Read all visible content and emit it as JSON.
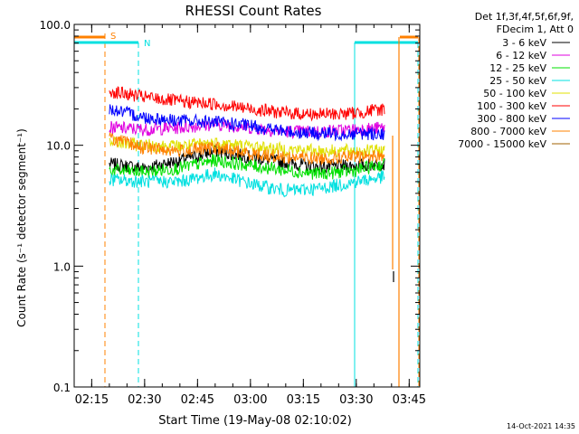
{
  "chart_data": {
    "type": "line",
    "title": "RHESSI Count Rates",
    "xlabel": "Start Time (19-May-08 02:10:02)",
    "ylabel": "Count Rate (s⁻¹ detector segment⁻¹)",
    "y_scale": "log",
    "ylim": [
      0.1,
      100.0
    ],
    "xlim": [
      "02:10:02",
      "03:48:00"
    ],
    "y_tick_labels": [
      "0.1",
      "1.0",
      "10.0",
      "100.0"
    ],
    "x_tick_labels": [
      "02:15",
      "02:30",
      "02:45",
      "03:00",
      "03:15",
      "03:30",
      "03:45"
    ],
    "legend_header": [
      "Det 1f,3f,4f,5f,6f,9f,",
      "FDecim 1, Att 0"
    ],
    "legend_position": "right",
    "timestamp": "14-Oct-2021 14:35",
    "series": [
      {
        "name": "3 - 6 keV",
        "color": "#000000",
        "x": [
          "02:20",
          "02:30",
          "02:40",
          "02:50",
          "03:00",
          "03:10",
          "03:20",
          "03:30",
          "03:38"
        ],
        "values": [
          7.0,
          6.5,
          7.5,
          9.0,
          8.0,
          7.2,
          6.6,
          6.8,
          7.0
        ]
      },
      {
        "name": "6 - 12 keV",
        "color": "#e000e0",
        "x": [
          "02:20",
          "02:30",
          "02:40",
          "02:50",
          "03:00",
          "03:10",
          "03:20",
          "03:30",
          "03:38"
        ],
        "values": [
          14.0,
          13.5,
          14.0,
          15.0,
          14.0,
          13.0,
          13.0,
          13.5,
          14.0
        ]
      },
      {
        "name": "12 - 25 keV",
        "color": "#00e000",
        "x": [
          "02:20",
          "02:30",
          "02:40",
          "02:50",
          "03:00",
          "03:10",
          "03:20",
          "03:30",
          "03:38"
        ],
        "values": [
          6.2,
          6.0,
          6.5,
          7.5,
          6.8,
          6.2,
          5.8,
          6.2,
          7.0
        ]
      },
      {
        "name": "25 - 50 keV",
        "color": "#00e0e0",
        "x": [
          "02:20",
          "02:30",
          "02:40",
          "02:50",
          "03:00",
          "03:10",
          "03:20",
          "03:30",
          "03:38"
        ],
        "values": [
          5.2,
          5.0,
          5.0,
          5.8,
          4.8,
          4.2,
          4.4,
          5.0,
          5.5
        ]
      },
      {
        "name": "50 - 100 keV",
        "color": "#e0e000",
        "x": [
          "02:20",
          "02:30",
          "02:40",
          "02:50",
          "03:00",
          "03:10",
          "03:20",
          "03:30",
          "03:38"
        ],
        "values": [
          10.5,
          10.0,
          9.8,
          10.5,
          9.8,
          9.2,
          9.0,
          9.0,
          9.0
        ]
      },
      {
        "name": "100 - 300 keV",
        "color": "#ff0000",
        "x": [
          "02:20",
          "02:30",
          "02:40",
          "02:50",
          "03:00",
          "03:10",
          "03:20",
          "03:30",
          "03:38"
        ],
        "values": [
          28.0,
          25.0,
          23.0,
          22.0,
          20.0,
          18.5,
          18.0,
          18.5,
          20.0
        ]
      },
      {
        "name": "300 - 800 keV",
        "color": "#0000ff",
        "x": [
          "02:20",
          "02:30",
          "02:40",
          "02:50",
          "03:00",
          "03:10",
          "03:20",
          "03:30",
          "03:38"
        ],
        "values": [
          20.0,
          17.0,
          16.0,
          15.5,
          14.5,
          13.0,
          12.5,
          12.5,
          12.5
        ]
      },
      {
        "name": "800 - 7000 keV",
        "color": "#ff8000",
        "x": [
          "02:20",
          "02:30",
          "02:40",
          "02:50",
          "03:00",
          "03:10",
          "03:20",
          "03:30",
          "03:38"
        ],
        "values": [
          11.5,
          9.5,
          9.0,
          9.5,
          8.5,
          8.0,
          7.8,
          8.0,
          8.2
        ]
      },
      {
        "name": "7000 - 15000 keV",
        "color": "#a06000",
        "x": [],
        "values": []
      }
    ],
    "annotations": [
      {
        "label": "S",
        "color": "#ff8000",
        "style": "dashed",
        "x": "02:18"
      },
      {
        "label": "N",
        "color": "#00e0e0",
        "style": "dashed",
        "x": "02:28"
      }
    ]
  }
}
